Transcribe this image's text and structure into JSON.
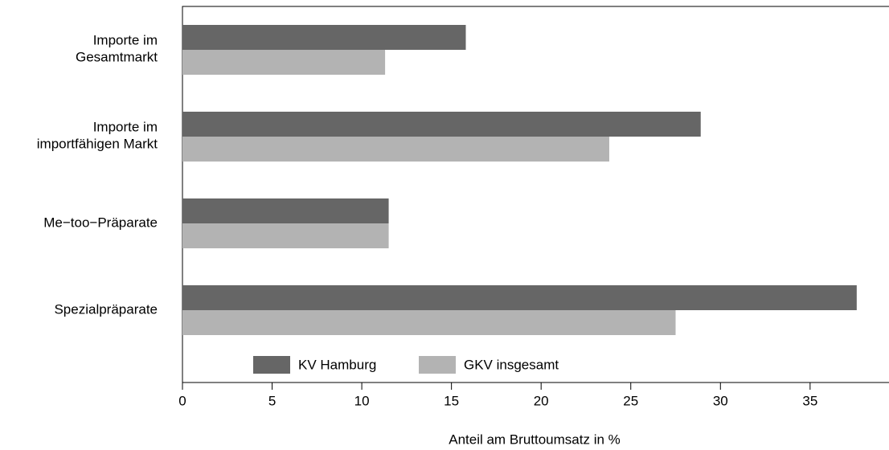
{
  "chart_data": {
    "type": "bar",
    "orientation": "horizontal",
    "x_label": "Anteil am Bruttoumsatz in %",
    "categories": [
      "Importe im\nGesamtmarkt",
      "Importe im\nimportfähigen Markt",
      "Me−too−Präparate",
      "Spezialpräparate"
    ],
    "series": [
      {
        "name": "KV Hamburg",
        "color": "#666666",
        "values": [
          15.8,
          28.9,
          11.5,
          37.6
        ]
      },
      {
        "name": "GKV insgesamt",
        "color": "#b3b3b3",
        "values": [
          11.3,
          23.8,
          11.5,
          27.5
        ]
      }
    ],
    "xlim": [
      0,
      39.4
    ],
    "xticks": [
      0,
      5,
      10,
      15,
      20,
      25,
      30,
      35
    ],
    "legend": "bottom"
  }
}
